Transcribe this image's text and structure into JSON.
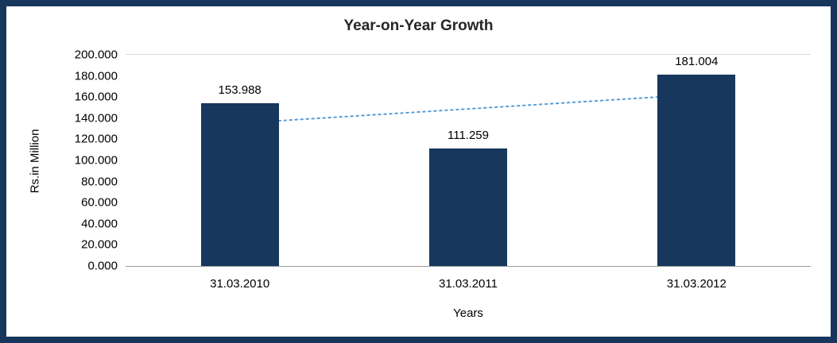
{
  "frame": {
    "border_color": "#16365C",
    "background": "#FFFFFF"
  },
  "chart_data": {
    "type": "bar",
    "title": "Year-on-Year Growth",
    "xlabel": "Years",
    "ylabel": "Rs.in Million",
    "categories": [
      "31.03.2010",
      "31.03.2011",
      "31.03.2012"
    ],
    "values": [
      153.988,
      111.259,
      181.004
    ],
    "data_labels": [
      "153.988",
      "111.259",
      "181.004"
    ],
    "ylim": [
      0,
      200
    ],
    "yticks": [
      "0.000",
      "20.000",
      "40.000",
      "60.000",
      "80.000",
      "100.000",
      "120.000",
      "140.000",
      "160.000",
      "180.000",
      "200.000"
    ],
    "grid": "none",
    "legend": "none",
    "bar_color": "#17375D",
    "trendline": {
      "type": "linear",
      "style": "dotted",
      "color": "#5B9BD5",
      "start_value": 135.2,
      "end_value": 162.3
    }
  }
}
